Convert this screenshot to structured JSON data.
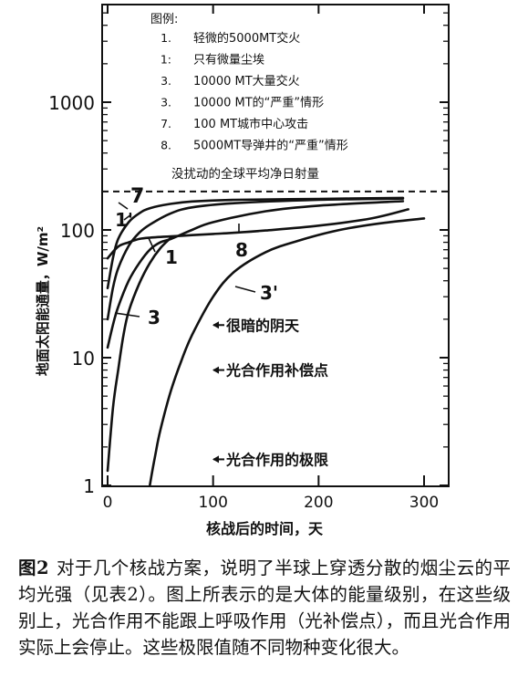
{
  "chart_data": {
    "type": "line",
    "title": "",
    "xlabel": "核战后的时间，天",
    "ylabel": "地面太阳能通量，W/m²",
    "x_ticks": [
      "0",
      "100",
      "200",
      "300"
    ],
    "x_tick_values": [
      0,
      100,
      200,
      300
    ],
    "y_ticks": [
      "1",
      "10",
      "100",
      "1000"
    ],
    "y_tick_values": [
      1,
      10,
      100,
      1000
    ],
    "xlim": [
      -5,
      330
    ],
    "ylim": [
      1,
      7000
    ],
    "y_scale": "log",
    "grid": false,
    "legend": {
      "title": "图例:",
      "placement": "top-right",
      "items": [
        {
          "key": "1.",
          "text": "轻微的5000MT交火"
        },
        {
          "key": "1:",
          "text": "只有微量尘埃"
        },
        {
          "key": "3.",
          "text": "10000 MT大量交火"
        },
        {
          "key": "3.",
          "text": "10000 MT的“严重”情形"
        },
        {
          "key": "7.",
          "text": "100 MT城市中心攻击"
        },
        {
          "key": "8.",
          "text": "5000MT导弹井的“严重”情形"
        }
      ],
      "reference_line_label": "没扰动的全球平均净日射量"
    },
    "reference_line": {
      "y": 200,
      "label": "没扰动的全球平均净日射量"
    },
    "thresholds": [
      {
        "label": "很暗的阴天",
        "y": 18
      },
      {
        "label": "光合作用补偿点",
        "y": 8
      },
      {
        "label": "光合作用的极限",
        "y": 1.6
      }
    ],
    "series": [
      {
        "name": "7",
        "label": "7",
        "x": [
          0,
          5,
          10,
          20,
          30,
          40,
          60,
          80,
          120,
          200,
          280
        ],
        "y": [
          35,
          60,
          85,
          115,
          135,
          148,
          160,
          167,
          172,
          175,
          178
        ]
      },
      {
        "name": "1'",
        "label": "1'",
        "x": [
          0,
          5,
          10,
          20,
          30,
          40,
          60,
          80,
          120,
          200,
          280
        ],
        "y": [
          20,
          35,
          50,
          75,
          95,
          110,
          135,
          150,
          162,
          172,
          176
        ]
      },
      {
        "name": "1",
        "label": "1",
        "x": [
          0,
          5,
          10,
          20,
          30,
          40,
          50,
          60,
          80,
          100,
          150,
          200,
          280
        ],
        "y": [
          12,
          18,
          25,
          40,
          55,
          70,
          80,
          85,
          100,
          115,
          140,
          155,
          168
        ]
      },
      {
        "name": "8",
        "label": "8",
        "x": [
          0,
          10,
          20,
          30,
          40,
          60,
          80,
          100,
          120,
          150,
          200,
          250,
          285
        ],
        "y": [
          60,
          74,
          80,
          85,
          87,
          89,
          91,
          93,
          95,
          99,
          108,
          123,
          145
        ]
      },
      {
        "name": "3",
        "label": "3",
        "x": [
          0,
          5,
          10,
          15,
          20,
          30,
          40,
          50,
          60
        ],
        "y": [
          1.3,
          4,
          8,
          15,
          23,
          38,
          55,
          72,
          87
        ]
      },
      {
        "name": "3'",
        "label": "3'",
        "x": [
          40,
          45,
          50,
          60,
          70,
          80,
          100,
          120,
          150,
          180,
          220,
          260,
          300
        ],
        "y": [
          1,
          1.7,
          2.7,
          5.5,
          9.5,
          15,
          30,
          47,
          67,
          82,
          100,
          113,
          123
        ]
      }
    ]
  },
  "caption": {
    "figure_label": "图2",
    "text": "对于几个核战方案，说明了半球上穿透分散的烟尘云的平均光强（见表2）。图上所表示的是大体的能量级别，在这些级别上，光合作用不能跟上呼吸作用（光补偿点），而且光合作用实际上会停止。这些极限值随不同物种变化很大。"
  }
}
